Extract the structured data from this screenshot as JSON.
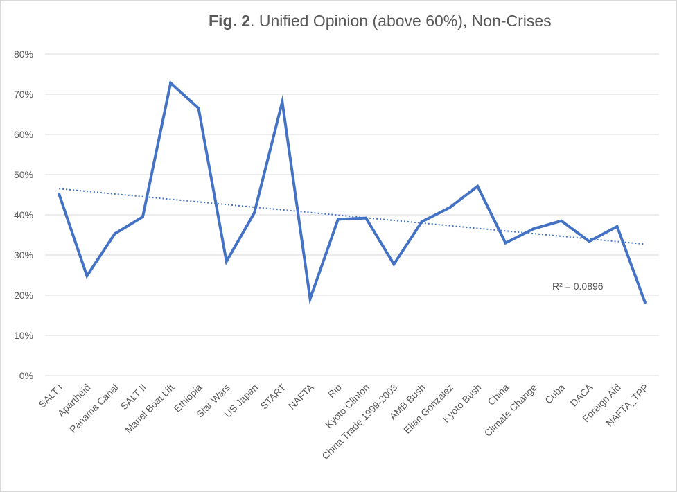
{
  "chart_data": {
    "type": "line",
    "title_bold": "Fig. 2",
    "title_rest": ".  Unified Opinion (above 60%), Non-Crises",
    "categories": [
      "SALT I",
      "Apartheid",
      "Panama Canal",
      "SALT II",
      "Mariel Boat Lift",
      "Ethiopia",
      "Star Wars",
      "US Japan",
      "START",
      "NAFTA",
      "Rio",
      "Kyoto Clinton",
      "China Trade 1999-2003",
      "AMB Bush",
      "Elian Gonzalez",
      "Kyoto Bush",
      "China",
      "Climate Change",
      "Cuba",
      "DACA",
      "Foreign Aid",
      "NAFTA_TPP"
    ],
    "series": [
      {
        "values": [
          45.2,
          24.8,
          35.3,
          39.5,
          72.8,
          66.5,
          28.4,
          40.5,
          68.1,
          19.1,
          38.9,
          39.2,
          27.7,
          38.3,
          41.8,
          47.1,
          33.0,
          36.5,
          38.5,
          33.4,
          37.1,
          18.2
        ],
        "color": "#4472c4"
      }
    ],
    "trendline": {
      "type": "linear",
      "start": 46.5,
      "end": 32.7,
      "color": "#4472c4",
      "label": "R² = 0.0896"
    },
    "yticks": [
      "0%",
      "10%",
      "20%",
      "30%",
      "40%",
      "50%",
      "60%",
      "70%",
      "80%"
    ],
    "ylim": [
      0,
      80
    ],
    "grid": true,
    "legend": "none"
  }
}
